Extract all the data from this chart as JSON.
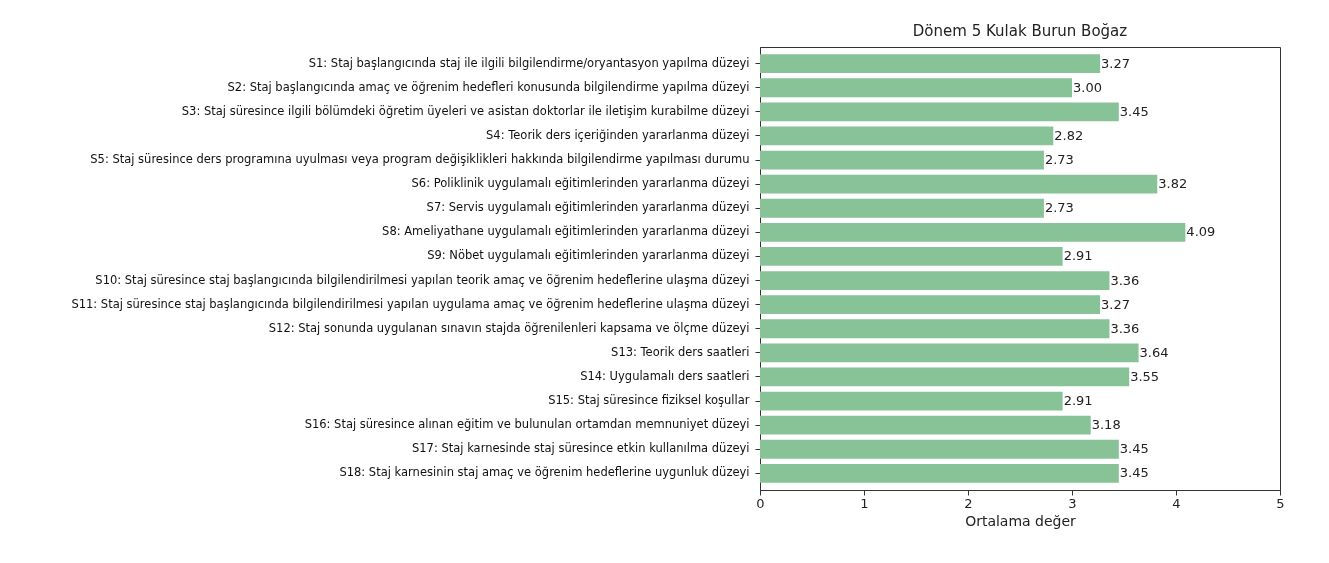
{
  "chart_data": {
    "type": "bar",
    "orientation": "horizontal",
    "title": "Dönem 5 Kulak Burun Boğaz",
    "xlabel": "Ortalama değer",
    "categories": [
      "S1: Staj başlangıcında staj ile ilgili bilgilendirme/oryantasyon yapılma düzeyi",
      "S2: Staj başlangıcında amaç ve öğrenim hedefleri konusunda bilgilendirme yapılma düzeyi",
      "S3: Staj süresince ilgili bölümdeki öğretim üyeleri ve asistan doktorlar ile iletişim kurabilme düzeyi",
      "S4: Teorik ders içeriğinden yararlanma düzeyi",
      "S5: Staj süresince ders programına uyulması veya program değişiklikleri hakkında bilgilendirme yapılması durumu",
      "S6: Poliklinik uygulamalı eğitimlerinden yararlanma düzeyi",
      "S7: Servis uygulamalı eğitimlerinden yararlanma düzeyi",
      "S8: Ameliyathane uygulamalı eğitimlerinden yararlanma düzeyi",
      "S9: Nöbet uygulamalı eğitimlerinden yararlanma düzeyi",
      "S10: Staj süresince staj başlangıcında bilgilendirilmesi yapılan teorik amaç ve öğrenim hedeflerine ulaşma düzeyi",
      "S11: Staj süresince staj başlangıcında bilgilendirilmesi yapılan uygulama amaç ve öğrenim hedeflerine ulaşma düzeyi",
      "S12: Staj sonunda uygulanan sınavın stajda öğrenilenleri kapsama ve ölçme düzeyi",
      "S13: Teorik ders saatleri",
      "S14: Uygulamalı ders saatleri",
      "S15: Staj süresince fiziksel koşullar",
      "S16: Staj süresince alınan eğitim ve bulunulan ortamdan memnuniyet düzeyi",
      "S17: Staj karnesinde staj süresince etkin kullanılma düzeyi",
      "S18: Staj karnesinin staj amaç ve öğrenim hedeflerine uygunluk düzeyi"
    ],
    "values": [
      3.27,
      3.0,
      3.45,
      2.82,
      2.73,
      3.82,
      2.73,
      4.09,
      2.91,
      3.36,
      3.27,
      3.36,
      3.64,
      3.55,
      2.91,
      3.18,
      3.45,
      3.45
    ],
    "value_labels": [
      "3.27",
      "3.00",
      "3.45",
      "2.82",
      "2.73",
      "3.82",
      "2.73",
      "4.09",
      "2.91",
      "3.36",
      "3.27",
      "3.36",
      "3.64",
      "3.55",
      "2.91",
      "3.18",
      "3.45",
      "3.45"
    ],
    "color": "#88c297",
    "xlim": [
      0,
      5
    ],
    "xticks": [
      0,
      1,
      2,
      3,
      4,
      5
    ],
    "grid": false
  }
}
